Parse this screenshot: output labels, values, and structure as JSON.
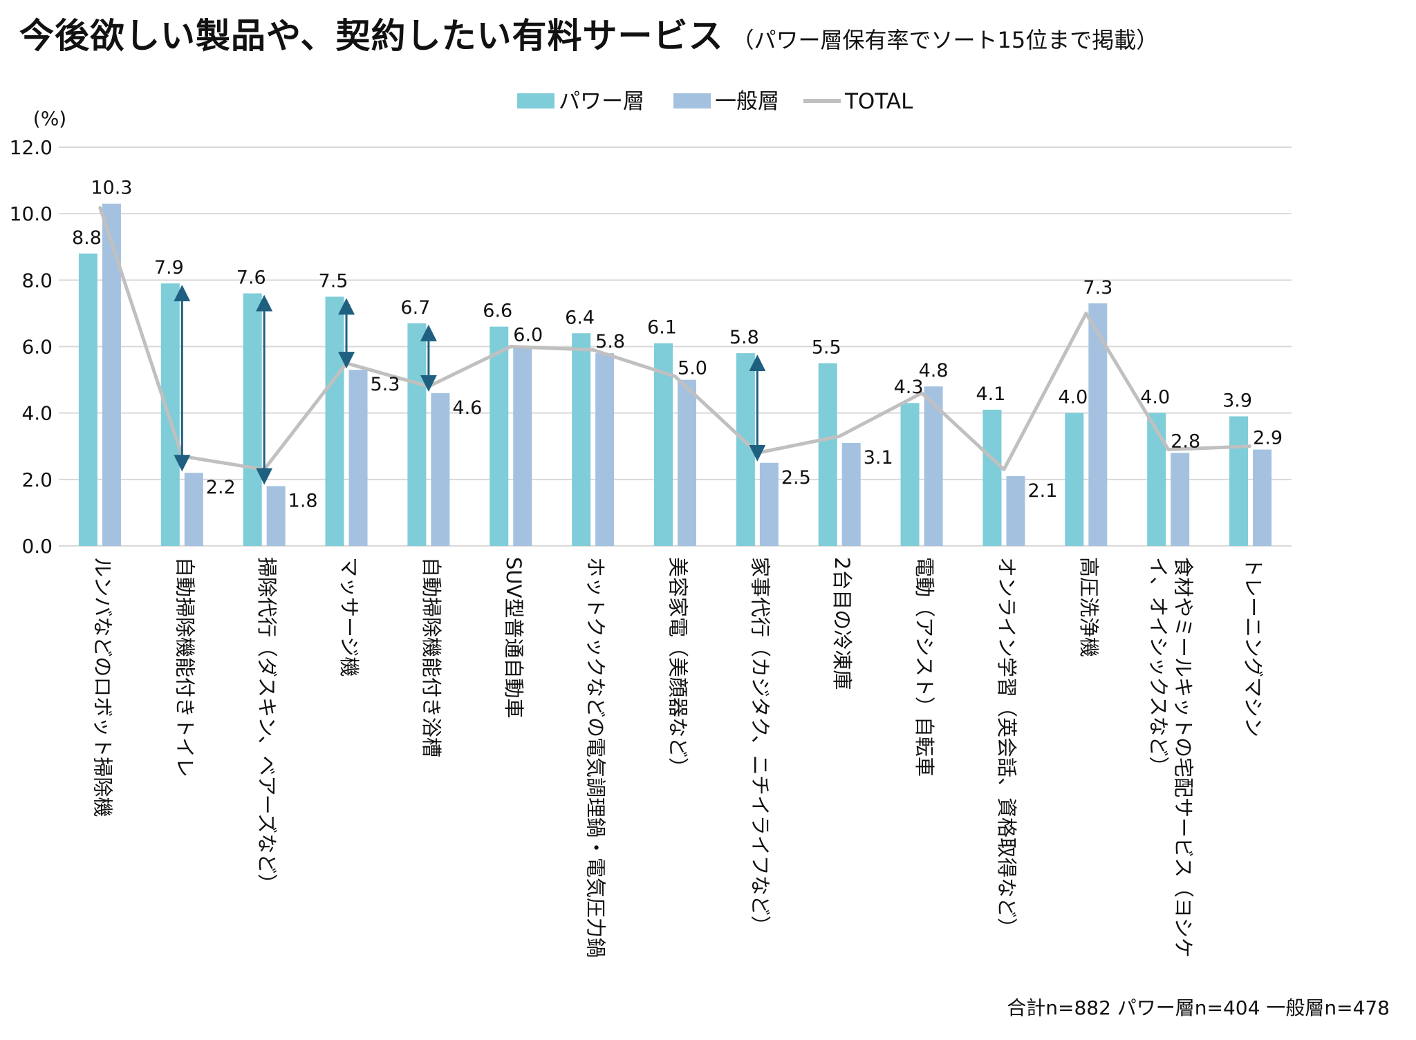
{
  "title": "今後欲しい製品や、契約したい有料サービス",
  "subtitle": "（パワー層保有率でソート15位まで掲載）",
  "note": "合計n=882 パワー層n=404 一般層n=478",
  "colors": {
    "power": "#7ecdd8",
    "general": "#a4c2e0",
    "total": "#c0c0c0",
    "arrow": "#1f5f80",
    "grid": "#d9d9d9"
  },
  "chart_data": {
    "type": "bar",
    "ylabel": "(%)",
    "ylim": [
      0,
      12
    ],
    "yticks": [
      "0.0",
      "2.0",
      "4.0",
      "6.0",
      "8.0",
      "10.0",
      "12.0"
    ],
    "grid": true,
    "legend_position": "top-center",
    "categories": [
      [
        "ルンバなどのロボット掃除機"
      ],
      [
        "自動掃除機能付きトイレ"
      ],
      [
        "掃除代行（ダスキン、ベアーズなど）"
      ],
      [
        "マッサージ機"
      ],
      [
        "自動掃除機能付き浴槽"
      ],
      [
        "SUV型普通自動車"
      ],
      [
        "ホットクックなどの電気調理鍋・電気圧力鍋"
      ],
      [
        "美容家電（美顔器など）"
      ],
      [
        "家事代行（カジタク、ニチイライフなど）"
      ],
      [
        "2台目の冷凍庫"
      ],
      [
        "電動（アシスト）自転車"
      ],
      [
        "オンライン学習（英会話、資格取得など）"
      ],
      [
        "高圧洗浄機"
      ],
      [
        "食材やミールキットの宅配サービス（ヨシケ",
        "イ、オイシックスなど）"
      ],
      [
        "トレーニングマシン"
      ]
    ],
    "series": [
      {
        "name": "パワー層",
        "type": "bar",
        "values": [
          8.8,
          7.9,
          7.6,
          7.5,
          6.7,
          6.6,
          6.4,
          6.1,
          5.8,
          5.5,
          4.3,
          4.1,
          4.0,
          4.0,
          3.9
        ],
        "labels": [
          "8.8",
          "7.9",
          "7.6",
          "7.5",
          "6.7",
          "6.6",
          "6.4",
          "6.1",
          "5.8",
          "5.5",
          "4.3",
          "4.1",
          "4.0",
          "4.0",
          "3.9"
        ]
      },
      {
        "name": "一般層",
        "type": "bar",
        "values": [
          10.3,
          2.2,
          1.8,
          5.3,
          4.6,
          6.0,
          5.8,
          5.0,
          2.5,
          3.1,
          4.8,
          2.1,
          7.3,
          2.8,
          2.9
        ],
        "labels": [
          "10.3",
          "2.2",
          "1.8",
          "5.3",
          "4.6",
          "6.0",
          "5.8",
          "5.0",
          "2.5",
          "3.1",
          "4.8",
          "2.1",
          "7.3",
          "2.8",
          "2.9"
        ]
      },
      {
        "name": "TOTAL",
        "type": "line",
        "values": [
          10.2,
          2.7,
          2.3,
          5.5,
          4.8,
          6.0,
          5.9,
          5.1,
          2.8,
          3.3,
          4.6,
          2.3,
          7.0,
          2.9,
          3.0
        ]
      }
    ],
    "gap_arrows": [
      1,
      2,
      3,
      4,
      8
    ]
  }
}
